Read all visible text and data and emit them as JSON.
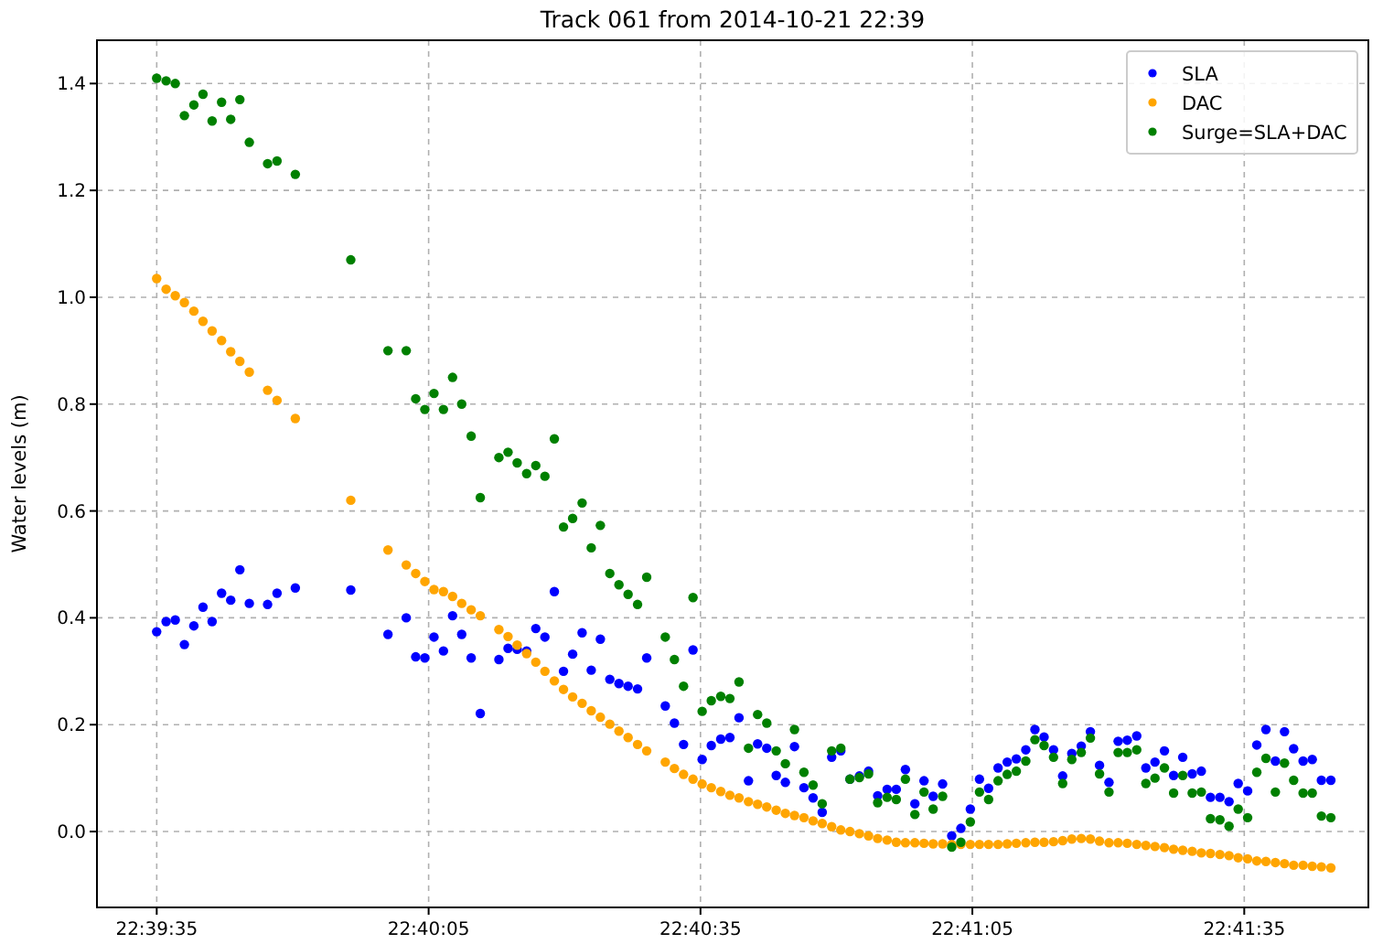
{
  "chart_data": {
    "type": "scatter",
    "title": "Track 061 from 2014-10-21 22:39",
    "ylabel": "Water levels (m)",
    "x": [
      22.65972,
      22.66001,
      22.66029,
      22.66057,
      22.66086,
      22.66114,
      22.66142,
      22.66171,
      22.66199,
      22.66227,
      22.66256,
      22.66312,
      22.66341,
      22.66397,
      22.66567,
      22.66681,
      22.66737,
      22.66766,
      22.66794,
      22.66822,
      22.66851,
      22.66879,
      22.66907,
      22.66936,
      22.66964,
      22.67021,
      22.67049,
      22.67077,
      22.67106,
      22.67134,
      22.67162,
      22.67191,
      22.67219,
      22.67247,
      22.67276,
      22.67304,
      22.67332,
      22.67361,
      22.67389,
      22.67417,
      22.67446,
      22.67474,
      22.67531,
      22.67559,
      22.67587,
      22.67616,
      22.67644,
      22.67672,
      22.67701,
      22.67729,
      22.67757,
      22.67786,
      22.67814,
      22.67842,
      22.67871,
      22.67899,
      22.67927,
      22.67956,
      22.67984,
      22.68012,
      22.68041,
      22.68069,
      22.68097,
      22.68126,
      22.68154,
      22.68182,
      22.68211,
      22.68239,
      22.68267,
      22.68296,
      22.68324,
      22.68352,
      22.68381,
      22.68409,
      22.68437,
      22.68466,
      22.68494,
      22.68522,
      22.68551,
      22.68579,
      22.68607,
      22.68636,
      22.68664,
      22.68692,
      22.68721,
      22.68749,
      22.68777,
      22.68806,
      22.68834,
      22.68862,
      22.68891,
      22.68919,
      22.68947,
      22.68976,
      22.69004,
      22.69032,
      22.69061,
      22.69089,
      22.69117,
      22.69146,
      22.69174,
      22.69202,
      22.69231,
      22.69259,
      22.69287,
      22.69316,
      22.69344,
      22.69372,
      22.69401,
      22.69429,
      22.69457,
      22.69486,
      22.69514,
      22.69542,
      22.69571
    ],
    "series": [
      {
        "name": "SLA",
        "color": "#0000ff",
        "values": [
          0.374,
          0.393,
          0.396,
          0.35,
          0.385,
          0.42,
          0.393,
          0.446,
          0.433,
          0.49,
          0.427,
          0.425,
          0.446,
          0.456,
          0.452,
          0.369,
          0.4,
          0.327,
          0.325,
          0.364,
          0.338,
          0.404,
          0.369,
          0.325,
          0.221,
          0.322,
          0.343,
          0.341,
          0.338,
          0.38,
          0.364,
          0.449,
          0.3,
          0.332,
          0.372,
          0.302,
          0.36,
          0.285,
          0.277,
          0.272,
          0.267,
          0.325,
          0.235,
          0.203,
          0.163,
          0.34,
          0.135,
          0.161,
          0.173,
          0.176,
          0.213,
          0.095,
          0.164,
          0.156,
          0.105,
          0.092,
          0.159,
          0.082,
          0.063,
          0.036,
          0.139,
          0.151,
          0.098,
          0.104,
          0.113,
          0.067,
          0.079,
          0.079,
          0.116,
          0.052,
          0.095,
          0.066,
          0.089,
          -0.008,
          0.006,
          0.042,
          0.098,
          0.081,
          0.119,
          0.13,
          0.136,
          0.153,
          0.191,
          0.177,
          0.153,
          0.104,
          0.146,
          0.16,
          0.187,
          0.124,
          0.092,
          0.169,
          0.171,
          0.179,
          0.119,
          0.13,
          0.151,
          0.105,
          0.139,
          0.108,
          0.113,
          0.064,
          0.064,
          0.056,
          0.09,
          0.076,
          0.162,
          0.191,
          0.132,
          0.187,
          0.155,
          0.132,
          0.135,
          0.096,
          0.096
        ]
      },
      {
        "name": "DAC",
        "color": "#ffa500",
        "values": [
          1.035,
          1.015,
          1.003,
          0.99,
          0.974,
          0.955,
          0.937,
          0.919,
          0.898,
          0.88,
          0.86,
          0.826,
          0.807,
          0.773,
          0.62,
          0.527,
          0.499,
          0.483,
          0.468,
          0.453,
          0.449,
          0.44,
          0.427,
          0.415,
          0.404,
          0.378,
          0.365,
          0.349,
          0.333,
          0.317,
          0.3,
          0.282,
          0.266,
          0.252,
          0.24,
          0.226,
          0.214,
          0.201,
          0.188,
          0.176,
          0.163,
          0.151,
          0.13,
          0.118,
          0.107,
          0.098,
          0.089,
          0.082,
          0.075,
          0.068,
          0.063,
          0.056,
          0.051,
          0.046,
          0.04,
          0.034,
          0.03,
          0.026,
          0.02,
          0.015,
          0.009,
          0.003,
          0,
          -0.004,
          -0.008,
          -0.013,
          -0.016,
          -0.02,
          -0.021,
          -0.021,
          -0.022,
          -0.023,
          -0.023,
          -0.024,
          -0.024,
          -0.024,
          -0.024,
          -0.024,
          -0.024,
          -0.023,
          -0.022,
          -0.021,
          -0.02,
          -0.02,
          -0.019,
          -0.017,
          -0.014,
          -0.013,
          -0.014,
          -0.018,
          -0.021,
          -0.021,
          -0.022,
          -0.024,
          -0.026,
          -0.028,
          -0.03,
          -0.033,
          -0.035,
          -0.037,
          -0.04,
          -0.041,
          -0.043,
          -0.045,
          -0.049,
          -0.051,
          -0.055,
          -0.056,
          -0.058,
          -0.06,
          -0.063,
          -0.063,
          -0.065,
          -0.066,
          -0.068
        ]
      },
      {
        "name": "Surge=SLA+DAC",
        "color": "#008000",
        "values": [
          1.41,
          1.405,
          1.4,
          1.34,
          1.36,
          1.38,
          1.33,
          1.365,
          1.333,
          1.37,
          1.29,
          1.25,
          1.255,
          1.23,
          1.07,
          0.9,
          0.9,
          0.81,
          0.79,
          0.82,
          0.79,
          0.85,
          0.8,
          0.74,
          0.625,
          0.7,
          0.71,
          0.69,
          0.67,
          0.685,
          0.665,
          0.735,
          0.57,
          0.586,
          0.615,
          0.531,
          0.573,
          0.483,
          0.462,
          0.444,
          0.425,
          0.476,
          0.364,
          0.322,
          0.272,
          0.438,
          0.225,
          0.245,
          0.253,
          0.249,
          0.28,
          0.156,
          0.219,
          0.203,
          0.151,
          0.127,
          0.191,
          0.111,
          0.087,
          0.052,
          0.151,
          0.156,
          0.098,
          0.101,
          0.108,
          0.054,
          0.064,
          0.06,
          0.098,
          0.032,
          0.074,
          0.042,
          0.066,
          -0.029,
          -0.02,
          0.018,
          0.074,
          0.06,
          0.095,
          0.107,
          0.113,
          0.132,
          0.172,
          0.161,
          0.139,
          0.09,
          0.135,
          0.148,
          0.175,
          0.108,
          0.074,
          0.148,
          0.148,
          0.153,
          0.09,
          0.1,
          0.119,
          0.072,
          0.105,
          0.072,
          0.074,
          0.024,
          0.022,
          0.01,
          0.042,
          0.026,
          0.111,
          0.137,
          0.074,
          0.128,
          0.096,
          0.072,
          0.072,
          0.029,
          0.026
        ]
      }
    ],
    "xlim": [
      22.65789,
      22.69686
    ],
    "xticks": [
      {
        "value": 22.659722,
        "label": "22:39:35"
      },
      {
        "value": 22.668056,
        "label": "22:40:05"
      },
      {
        "value": 22.676389,
        "label": "22:40:35"
      },
      {
        "value": 22.684722,
        "label": "22:41:05"
      },
      {
        "value": 22.693056,
        "label": "22:41:35"
      }
    ],
    "ylim": [
      -0.142,
      1.481
    ],
    "yticks": [
      {
        "value": 0,
        "label": "0.0"
      },
      0.2,
      0.4,
      0.6,
      0.8,
      {
        "value": 1,
        "label": "1.0"
      },
      1.2,
      1.4
    ],
    "grid": true,
    "legend": "top right",
    "marker": "circle"
  }
}
